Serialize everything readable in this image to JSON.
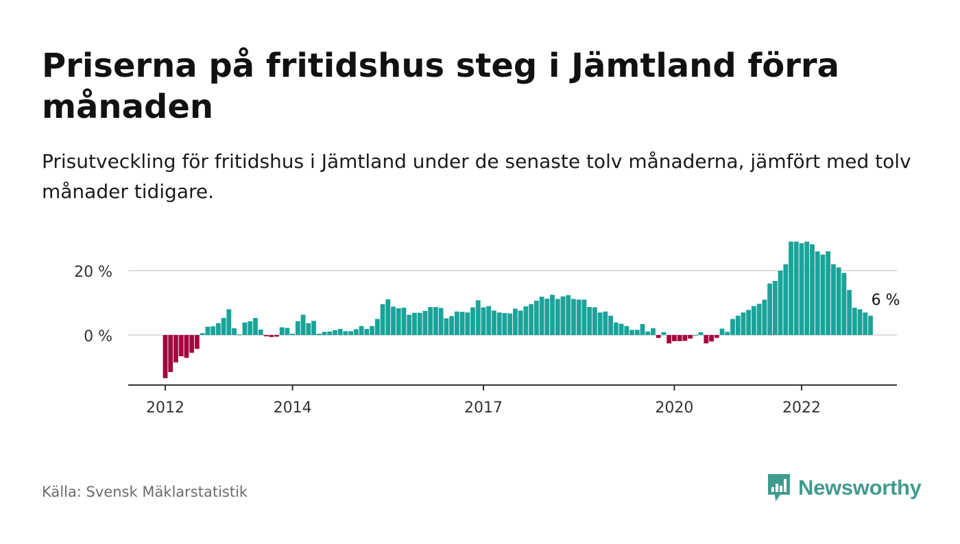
{
  "header": {
    "title": "Priserna på fritidshus steg i Jämtland förra månaden",
    "subtitle": "Prisutveckling för fritidshus i Jämtland under de senaste tolv månaderna, jämfört med tolv månader tidigare."
  },
  "footer": {
    "source": "Källa: Svensk Mäklarstatistik",
    "brand": "Newsworthy"
  },
  "colors": {
    "positive": "#1aa39a",
    "negative": "#a2083f",
    "grid": "#dddddd",
    "axis": "#333333",
    "brand": "#3f9b8e"
  },
  "chart_data": {
    "type": "bar",
    "x_start": "2012-01",
    "x_ticks": [
      "2012",
      "2014",
      "2017",
      "2020",
      "2022"
    ],
    "y_ticks": [
      0,
      20
    ],
    "y_tick_labels": [
      "0 %",
      "20 %"
    ],
    "ylim": [
      -15,
      30
    ],
    "grid": true,
    "annotation": "6 %",
    "values": [
      -13.4,
      -11.5,
      -8.5,
      -6.6,
      -7.1,
      -5.5,
      -4.3,
      0.6,
      2.6,
      2.7,
      3.7,
      5.3,
      8.0,
      2.1,
      0.2,
      3.9,
      4.3,
      5.3,
      1.7,
      -0.4,
      -0.6,
      -0.5,
      2.4,
      2.2,
      0.4,
      4.3,
      6.3,
      3.7,
      4.4,
      0.4,
      1.0,
      1.1,
      1.5,
      1.9,
      1.2,
      1.2,
      1.8,
      2.8,
      1.9,
      2.8,
      5.0,
      9.6,
      11.1,
      8.8,
      8.3,
      8.5,
      6.3,
      6.9,
      6.9,
      7.5,
      8.7,
      8.7,
      8.4,
      5.2,
      5.9,
      7.3,
      7.2,
      7.0,
      8.6,
      10.8,
      8.6,
      9.0,
      7.6,
      7.0,
      6.8,
      6.7,
      8.2,
      7.6,
      8.9,
      9.6,
      10.7,
      11.9,
      11.3,
      12.5,
      11.2,
      12.0,
      12.4,
      11.2,
      11.0,
      11.0,
      8.7,
      8.6,
      7.0,
      7.3,
      6.0,
      3.9,
      3.5,
      2.8,
      1.6,
      1.6,
      3.4,
      1.1,
      2.1,
      -0.9,
      0.9,
      -2.6,
      -1.9,
      -1.9,
      -1.8,
      -1.1,
      0.0,
      0.9,
      -2.6,
      -2.0,
      -0.9,
      2.0,
      1.0,
      5.0,
      6.0,
      7.0,
      7.8,
      9.0,
      9.7,
      11.0,
      16.0,
      16.8,
      20.0,
      22.0,
      29.0,
      29.0,
      28.5,
      29.0,
      28.2,
      26.0,
      25.0,
      26.0,
      22.0,
      21.0,
      19.3,
      14.0,
      8.5,
      8.0,
      7.0,
      6.0
    ]
  }
}
